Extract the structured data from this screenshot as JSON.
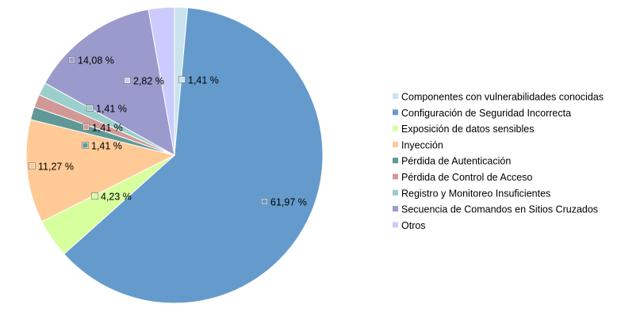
{
  "chart_data": {
    "type": "pie",
    "title": "",
    "legend_position": "right",
    "slices": [
      {
        "label": "Componentes con vulnerabilidades conocidas",
        "value": 1.41,
        "value_label": "1,41 %",
        "color": "#c9e3ef"
      },
      {
        "label": "Configuración de Seguridad Incorrecta",
        "value": 61.97,
        "value_label": "61,97 %",
        "color": "#659bcc"
      },
      {
        "label": "Exposición de datos sensibles",
        "value": 4.23,
        "value_label": "4,23 %",
        "color": "#d7ff9e"
      },
      {
        "label": "Inyección",
        "value": 11.27,
        "value_label": "11,27 %",
        "color": "#ffca96"
      },
      {
        "label": "Pérdida de Autenticación",
        "value": 1.41,
        "value_label": "1,41 %",
        "color": "#5f9897"
      },
      {
        "label": "Pérdida de Control de Acceso",
        "value": 1.41,
        "value_label": "1,41 %",
        "color": "#d09996"
      },
      {
        "label": "Registro y Monitoreo Insuficientes",
        "value": 1.41,
        "value_label": "1,41 %",
        "color": "#9acfcc"
      },
      {
        "label": "Secuencia de Comandos en Sitios Cruzados",
        "value": 14.08,
        "value_label": "14,08 %",
        "color": "#9b9acc"
      },
      {
        "label": "Otros",
        "value": 2.82,
        "value_label": "2,82 %",
        "color": "#cbccfd"
      }
    ]
  }
}
